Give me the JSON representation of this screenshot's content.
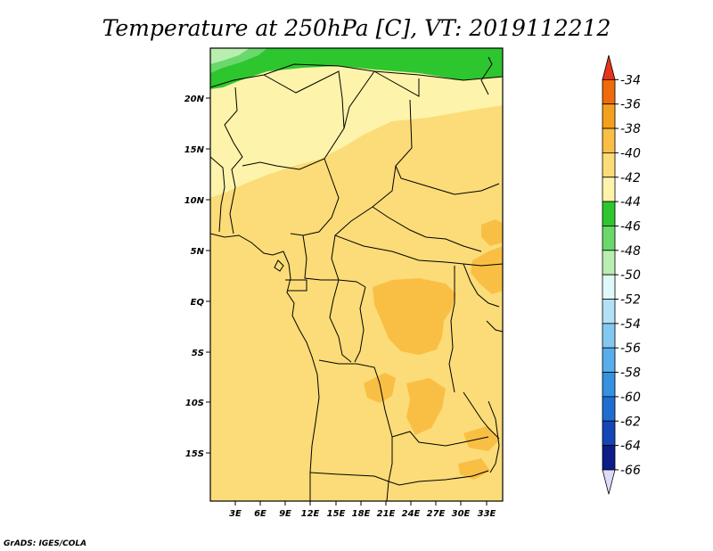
{
  "title": "Temperature at 250hPa [C], VT: 2019112212",
  "credit": "GrADS: IGES/COLA",
  "lat_labels": [
    "20N",
    "15N",
    "10N",
    "5N",
    "EQ",
    "5S",
    "10S",
    "15S"
  ],
  "lon_labels": [
    "3E",
    "6E",
    "9E",
    "12E",
    "15E",
    "18E",
    "21E",
    "24E",
    "27E",
    "30E",
    "33E"
  ],
  "colorbar": {
    "labels": [
      "-34",
      "-36",
      "-38",
      "-40",
      "-42",
      "-44",
      "-46",
      "-48",
      "-50",
      "-52",
      "-54",
      "-56",
      "-58",
      "-60",
      "-62",
      "-64",
      "-66"
    ],
    "colors": [
      "#e8341a",
      "#f06a0a",
      "#f5a01c",
      "#f9bf45",
      "#fbdc78",
      "#fdf3aa",
      "#2ec62e",
      "#6ad86a",
      "#b8eeb0",
      "#e0f8fa",
      "#b2e0f6",
      "#84c8f2",
      "#58aeec",
      "#3492e0",
      "#1e6ed2",
      "#1446b8",
      "#0c1c88",
      "#dcdcf8"
    ]
  }
}
